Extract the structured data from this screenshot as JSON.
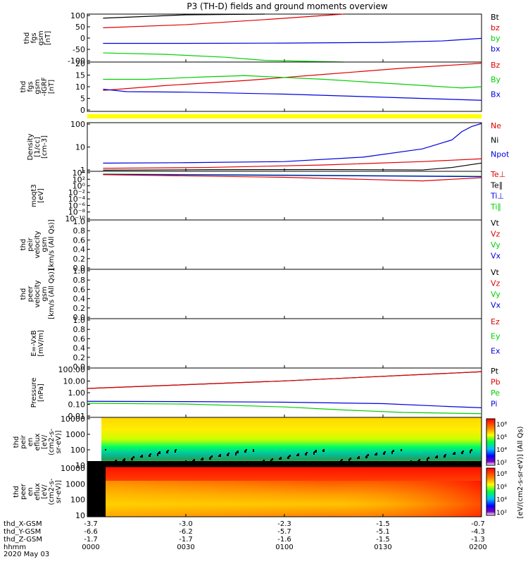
{
  "title": "P3 (TH-D) fields and ground moments overview",
  "date_label": "2020 May 03",
  "ephemeris": {
    "rows": [
      {
        "label": "thd_X-GSM",
        "values": [
          "-3.7",
          "-3.0",
          "-2.3",
          "-1.5",
          "-0.7"
        ]
      },
      {
        "label": "thd_Y-GSM",
        "values": [
          "-6.6",
          "-6.2",
          "-5.7",
          "-5.1",
          "-4.3"
        ]
      },
      {
        "label": "thd_Z-GSM",
        "values": [
          "-1.7",
          "-1.7",
          "-1.6",
          "-1.5",
          "-1.3"
        ]
      },
      {
        "label": "hhmm",
        "values": [
          "0000",
          "0030",
          "0100",
          "0130",
          "0200"
        ]
      }
    ]
  },
  "colors": {
    "black": "#000000",
    "red": "#e00000",
    "green": "#00d000",
    "blue": "#0000e0",
    "yellow": "#ffff00"
  },
  "chart_data": [
    {
      "type": "line",
      "ylabel_lines": [
        "thd",
        "fgs",
        "gsm",
        "[nT]"
      ],
      "ylim": [
        -100,
        100
      ],
      "ticks": [
        "100",
        "50",
        "0",
        "-50",
        "-100"
      ],
      "legend": [
        {
          "name": "Bt",
          "color": "black"
        },
        {
          "name": "bz",
          "color": "red"
        },
        {
          "name": "by",
          "color": "green"
        },
        {
          "name": "bx",
          "color": "blue"
        }
      ],
      "x_hours": [
        0.08,
        0.5,
        1.0,
        1.5,
        2.0
      ],
      "series": [
        {
          "name": "Bt",
          "color": "black",
          "x": [
            0.08,
            0.5,
            0.9
          ],
          "y": [
            83,
            97,
            112
          ]
        },
        {
          "name": "bz",
          "color": "red",
          "x": [
            0.08,
            0.5,
            0.9,
            1.3
          ],
          "y": [
            43,
            56,
            77,
            104
          ]
        },
        {
          "name": "by",
          "color": "green",
          "x": [
            0.08,
            0.4,
            0.7,
            0.9,
            1.3
          ],
          "y": [
            -62,
            -68,
            -80,
            -93,
            -112
          ]
        },
        {
          "name": "bx",
          "color": "blue",
          "x": [
            0.08,
            0.5,
            1.0,
            1.5,
            1.8,
            2.0
          ],
          "y": [
            -22,
            -22,
            -21,
            -18,
            -12,
            -1
          ]
        }
      ]
    },
    {
      "type": "line",
      "ylabel_lines": [
        "thd",
        "fgs",
        "gsm",
        "-IGRF",
        "[nT]"
      ],
      "ylim": [
        0,
        20
      ],
      "ticks": [
        "20",
        "15",
        "10",
        "5",
        "0"
      ],
      "legend": [
        {
          "name": "Bz",
          "color": "red"
        },
        {
          "name": "By",
          "color": "green"
        },
        {
          "name": "Bx",
          "color": "blue"
        }
      ],
      "series": [
        {
          "name": "Bz",
          "color": "red",
          "x": [
            0.08,
            0.4,
            0.8,
            1.2,
            1.6,
            2.0
          ],
          "y": [
            8.5,
            10.5,
            12.5,
            15,
            17.5,
            19.5
          ]
        },
        {
          "name": "By",
          "color": "green",
          "x": [
            0.08,
            0.3,
            0.6,
            0.8,
            1.2,
            1.6,
            1.9,
            2.0
          ],
          "y": [
            13,
            13,
            14,
            14.5,
            13,
            11,
            9.5,
            10
          ]
        },
        {
          "name": "Bx",
          "color": "blue",
          "x": [
            0.08,
            0.2,
            0.5,
            1.0,
            1.4,
            1.8,
            2.0
          ],
          "y": [
            9,
            8,
            7.8,
            7,
            6,
            5,
            4.5
          ]
        }
      ]
    },
    {
      "type": "line",
      "ylabel_lines": [
        "Density",
        "[1/cc]",
        "[cm-3]"
      ],
      "scale": "log",
      "ylim": [
        0.3,
        200
      ],
      "ticks": [
        "100",
        "10",
        "1"
      ],
      "legend": [
        {
          "name": "Ne",
          "color": "red"
        },
        {
          "name": "Ni",
          "color": "black"
        },
        {
          "name": "Npot",
          "color": "blue"
        }
      ],
      "series": [
        {
          "name": "Npot",
          "color": "blue",
          "x": [
            0.08,
            0.5,
            1.0,
            1.4,
            1.7,
            1.85,
            1.9,
            1.95,
            2.0
          ],
          "y": [
            0.9,
            0.95,
            1.1,
            2,
            6,
            20,
            60,
            120,
            180
          ]
        },
        {
          "name": "Ne",
          "color": "red",
          "x": [
            0.08,
            0.6,
            1.2,
            1.7,
            2.0
          ],
          "y": [
            0.45,
            0.5,
            0.7,
            1.1,
            1.6
          ]
        },
        {
          "name": "Ni",
          "color": "black",
          "x": [
            0.08,
            0.6,
            1.2,
            1.7,
            1.85,
            2.0
          ],
          "y": [
            0.35,
            0.37,
            0.38,
            0.36,
            0.5,
            0.9
          ]
        }
      ]
    },
    {
      "type": "line",
      "ylabel_lines": [
        "moqt3",
        "[eV]"
      ],
      "scale": "log",
      "ticks": [
        "10⁴",
        "10²",
        "10⁰",
        "10⁻²",
        "10⁻⁴",
        "10⁻⁶",
        "10⁻⁸",
        "10⁻¹⁰"
      ],
      "legend": [
        {
          "name": "Te⊥",
          "color": "red"
        },
        {
          "name": "Te∥",
          "color": "black"
        },
        {
          "name": "Ti⊥",
          "color": "blue"
        },
        {
          "name": "Ti∥",
          "color": "green"
        }
      ],
      "series": [
        {
          "name": "Ti∥",
          "color": "green",
          "x": [
            0.08,
            1.0,
            2.0
          ],
          "y": [
            3.6,
            3.3,
            2.9
          ]
        },
        {
          "name": "Ti⊥",
          "color": "blue",
          "x": [
            0.08,
            1.0,
            2.0
          ],
          "y": [
            3.5,
            3.2,
            2.8
          ]
        },
        {
          "name": "Te⊥",
          "color": "red",
          "x": [
            0.08,
            1.0,
            1.7,
            2.0
          ],
          "y": [
            3.4,
            2.6,
            1.5,
            2.5
          ]
        }
      ]
    },
    {
      "type": "line",
      "ylabel_lines": [
        "thd",
        "peir",
        "velocity",
        "gsm",
        "[km/s (All Qs)]"
      ],
      "ylim": [
        0,
        1
      ],
      "ticks": [
        "1.0",
        "0.8",
        "0.6",
        "0.4",
        "0.2",
        "0.0"
      ],
      "legend": [
        {
          "name": "Vt",
          "color": "black"
        },
        {
          "name": "Vz",
          "color": "red"
        },
        {
          "name": "Vy",
          "color": "green"
        },
        {
          "name": "Vx",
          "color": "blue"
        }
      ],
      "series": []
    },
    {
      "type": "line",
      "ylabel_lines": [
        "thd",
        "peer",
        "velocity",
        "gsm",
        "[km/s (All Qs)]"
      ],
      "ylim": [
        0,
        1
      ],
      "ticks": [
        "1.0",
        "0.8",
        "0.6",
        "0.4",
        "0.2",
        "0.0"
      ],
      "legend": [
        {
          "name": "Vt",
          "color": "black"
        },
        {
          "name": "Vz",
          "color": "red"
        },
        {
          "name": "Vy",
          "color": "green"
        },
        {
          "name": "Vx",
          "color": "blue"
        }
      ],
      "series": []
    },
    {
      "type": "line",
      "ylabel_lines": [
        "E=-VxB",
        "[mV/m]"
      ],
      "ylim": [
        0,
        1
      ],
      "ticks": [
        "1.0",
        "0.8",
        "0.6",
        "0.4",
        "0.2",
        "0.0"
      ],
      "legend": [
        {
          "name": "Ez",
          "color": "red"
        },
        {
          "name": "Ey",
          "color": "green"
        },
        {
          "name": "Ex",
          "color": "blue"
        }
      ],
      "series": []
    },
    {
      "type": "line",
      "ylabel_lines": [
        "Pressure",
        "[nPa]"
      ],
      "scale": "log",
      "ylim": [
        0.01,
        100
      ],
      "ticks": [
        "100.00",
        "10.00",
        "1.00",
        "0.10",
        "0.01"
      ],
      "legend": [
        {
          "name": "Pt",
          "color": "black"
        },
        {
          "name": "Pb",
          "color": "red"
        },
        {
          "name": "Pe",
          "color": "green"
        },
        {
          "name": "Pi",
          "color": "blue"
        }
      ],
      "series": [
        {
          "name": "Pt",
          "color": "black",
          "x": [
            0.0,
            1.0,
            2.0
          ],
          "y": [
            2.2,
            9,
            50
          ]
        },
        {
          "name": "Pb",
          "color": "red",
          "x": [
            0.0,
            1.0,
            2.0
          ],
          "y": [
            2.2,
            9,
            50
          ]
        },
        {
          "name": "Pi",
          "color": "blue",
          "x": [
            0.0,
            0.5,
            1.0,
            1.5,
            1.8,
            2.0
          ],
          "y": [
            0.2,
            0.19,
            0.17,
            0.13,
            0.08,
            0.06
          ]
        },
        {
          "name": "Pe",
          "color": "green",
          "x": [
            0.0,
            0.5,
            1.0,
            1.3,
            1.6,
            2.0
          ],
          "y": [
            0.14,
            0.12,
            0.07,
            0.04,
            0.025,
            0.02
          ]
        }
      ]
    },
    {
      "type": "heatmap",
      "ylabel_lines": [
        "thd",
        "peir",
        "en",
        "eflux",
        "[eV/",
        "(cm2-s-",
        "sr-eV)]"
      ],
      "ticks": [
        "10000",
        "1000",
        "100",
        "10"
      ],
      "colorbar_ticks": [
        "10⁸",
        "10⁶",
        "10⁴",
        "10²"
      ]
    },
    {
      "type": "heatmap",
      "ylabel_lines": [
        "thd",
        "peer",
        "en",
        "eflux",
        "[eV/",
        "(cm2-s-",
        "sr-eV)]"
      ],
      "ticks": [
        "10000",
        "1000",
        "100",
        "10"
      ],
      "colorbar_ticks": [
        "10⁸",
        "10⁶",
        "10⁴",
        "10²"
      ]
    }
  ],
  "colorbar_title": "[eV/(cm2-s-sr-eV)] (All Qs)"
}
